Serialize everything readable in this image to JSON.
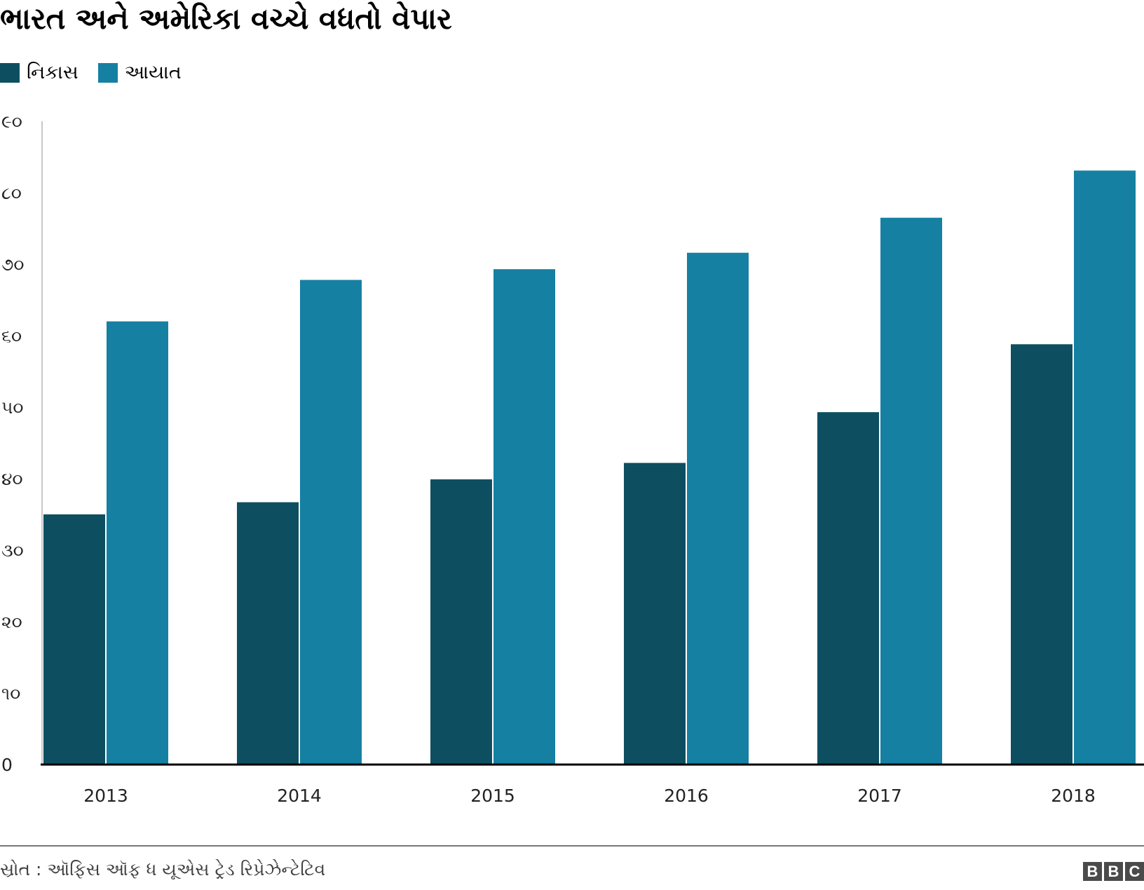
{
  "chart_data": {
    "type": "bar",
    "title": "ભારત અને અમેરિકા વચ્ચે વધતો વેપાર",
    "categories": [
      "2013",
      "2014",
      "2015",
      "2016",
      "2017",
      "2018"
    ],
    "series": [
      {
        "name": "નિકાસ",
        "color": "#0d4f61",
        "values": [
          35.0,
          36.7,
          39.9,
          42.2,
          49.3,
          58.8
        ]
      },
      {
        "name": "આયાત",
        "color": "#1580a2",
        "values": [
          62.0,
          67.8,
          69.3,
          71.6,
          76.5,
          83.1
        ]
      }
    ],
    "ylim": [
      0,
      90
    ],
    "yticks": [
      0,
      10,
      20,
      30,
      40,
      50,
      60,
      70,
      80,
      90
    ],
    "ytick_labels": [
      "0",
      "૧૦",
      "૨૦",
      "૩૦",
      "૪૦",
      "૫૦",
      "૬૦",
      "૭૦",
      "૮૦",
      "૯૦"
    ],
    "xlabel": "",
    "ylabel": "",
    "legend": "top-left",
    "grid": false,
    "source": "સ્રોત : ઑફિસ ઑફ ધ યૂએસ ટ્રેડ રિપ્રેઝેન્ટેટિવ"
  },
  "logo": [
    "B",
    "B",
    "C"
  ]
}
